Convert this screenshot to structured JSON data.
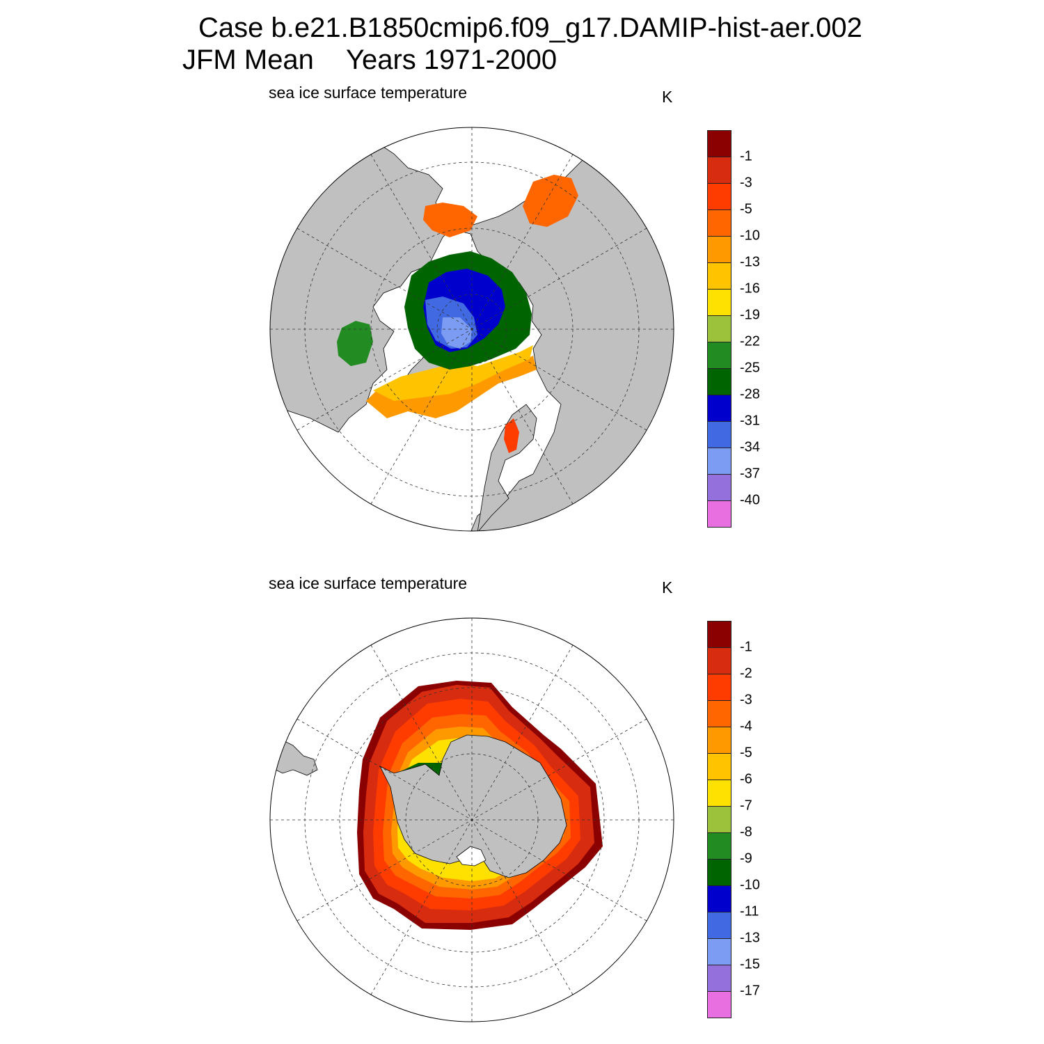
{
  "title": {
    "line1": "Case b.e21.B1850cmip6.f09_g17.DAMIP-hist-aer.002",
    "season": "JFM Mean",
    "years": "Years 1971-2000"
  },
  "panels": [
    {
      "hemisphere": "north",
      "label": "sea ice surface temperature",
      "units": "K",
      "colorbar": {
        "ticks": [
          "-1",
          "-3",
          "-5",
          "-10",
          "-13",
          "-16",
          "-19",
          "-22",
          "-25",
          "-28",
          "-31",
          "-34",
          "-37",
          "-40"
        ],
        "colors": [
          "#8b0000",
          "#d82c10",
          "#ff3c00",
          "#ff6600",
          "#ff9900",
          "#ffc300",
          "#ffe100",
          "#9bc23a",
          "#228b22",
          "#006400",
          "#0000cd",
          "#4169e1",
          "#7c9bf2",
          "#9370db",
          "#e86fdf"
        ]
      }
    },
    {
      "hemisphere": "south",
      "label": "sea ice surface temperature",
      "units": "K",
      "colorbar": {
        "ticks": [
          "-1",
          "-2",
          "-3",
          "-4",
          "-5",
          "-6",
          "-7",
          "-8",
          "-9",
          "-10",
          "-11",
          "-13",
          "-15",
          "-17"
        ],
        "colors": [
          "#8b0000",
          "#d82c10",
          "#ff3c00",
          "#ff6600",
          "#ff9900",
          "#ffc300",
          "#ffe100",
          "#9bc23a",
          "#228b22",
          "#006400",
          "#0000cd",
          "#4169e1",
          "#7c9bf2",
          "#9370db",
          "#e86fdf"
        ]
      }
    }
  ],
  "style": {
    "land": "#c0c0c0",
    "ocean": "#ffffff",
    "outline": "#000000"
  }
}
